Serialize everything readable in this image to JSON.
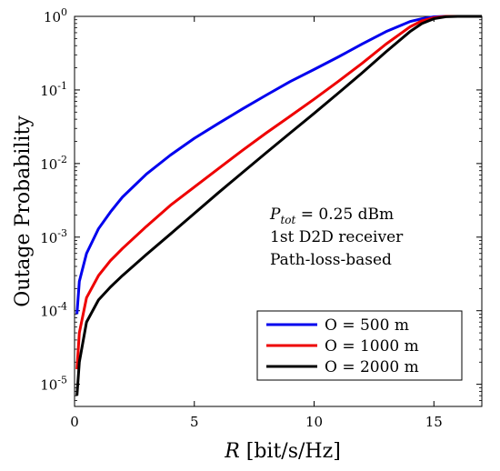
{
  "chart_data": {
    "type": "line",
    "title": "",
    "xlabel": "R [bit/s/Hz]",
    "ylabel": "Outage Probability",
    "xlim": [
      0,
      17
    ],
    "ylim": [
      5e-06,
      1
    ],
    "yscale": "log",
    "grid": false,
    "x_ticks": [
      0,
      5,
      10,
      15
    ],
    "x_tick_labels": [
      "0",
      "5",
      "10",
      "15"
    ],
    "y_ticks": [
      1e-05,
      0.0001,
      0.001,
      0.01,
      0.1,
      1
    ],
    "y_tick_labels": [
      {
        "base": "10",
        "exp": "-5"
      },
      {
        "base": "10",
        "exp": "-4"
      },
      {
        "base": "10",
        "exp": "-3"
      },
      {
        "base": "10",
        "exp": "-2"
      },
      {
        "base": "10",
        "exp": "-1"
      },
      {
        "base": "10",
        "exp": "0"
      }
    ],
    "annotations": [
      "P_tot = 0.25 dBm",
      "1st D2D receiver",
      "Path-loss-based"
    ],
    "legend_position": "lower-right",
    "series": [
      {
        "name": "O = 500 m",
        "color": "#0000ee",
        "x": [
          0.1,
          0.2,
          0.5,
          1,
          1.5,
          2,
          3,
          4,
          5,
          6,
          7,
          8,
          9,
          10,
          11,
          12,
          13,
          14,
          14.5,
          15,
          15.5,
          16,
          17
        ],
        "y": [
          9e-05,
          0.00025,
          0.0006,
          0.0013,
          0.0022,
          0.0035,
          0.0072,
          0.013,
          0.022,
          0.035,
          0.055,
          0.085,
          0.13,
          0.19,
          0.28,
          0.42,
          0.62,
          0.85,
          0.93,
          0.985,
          1.0,
          1.0,
          1.0
        ]
      },
      {
        "name": "O = 1000 m",
        "color": "#ee0000",
        "x": [
          0.1,
          0.2,
          0.5,
          1,
          1.5,
          2,
          3,
          4,
          5,
          6,
          7,
          8,
          9,
          10,
          11,
          12,
          13,
          14,
          14.5,
          15,
          15.5,
          16,
          17
        ],
        "y": [
          1.6e-05,
          5e-05,
          0.00015,
          0.0003,
          0.00048,
          0.0007,
          0.0014,
          0.0027,
          0.0048,
          0.0085,
          0.015,
          0.026,
          0.044,
          0.075,
          0.13,
          0.23,
          0.42,
          0.72,
          0.87,
          0.96,
          1.0,
          1.0,
          1.0
        ]
      },
      {
        "name": "O = 2000 m",
        "color": "#000000",
        "x": [
          0.1,
          0.2,
          0.5,
          1,
          1.5,
          2,
          3,
          4,
          5,
          6,
          7,
          8,
          9,
          10,
          11,
          12,
          13,
          14,
          14.5,
          15,
          15.5,
          16,
          17
        ],
        "y": [
          7e-06,
          2e-05,
          7e-05,
          0.00014,
          0.00021,
          0.0003,
          0.00058,
          0.0011,
          0.0021,
          0.004,
          0.0075,
          0.014,
          0.026,
          0.048,
          0.09,
          0.17,
          0.33,
          0.62,
          0.8,
          0.93,
          0.99,
          1.0,
          1.0
        ]
      }
    ]
  }
}
